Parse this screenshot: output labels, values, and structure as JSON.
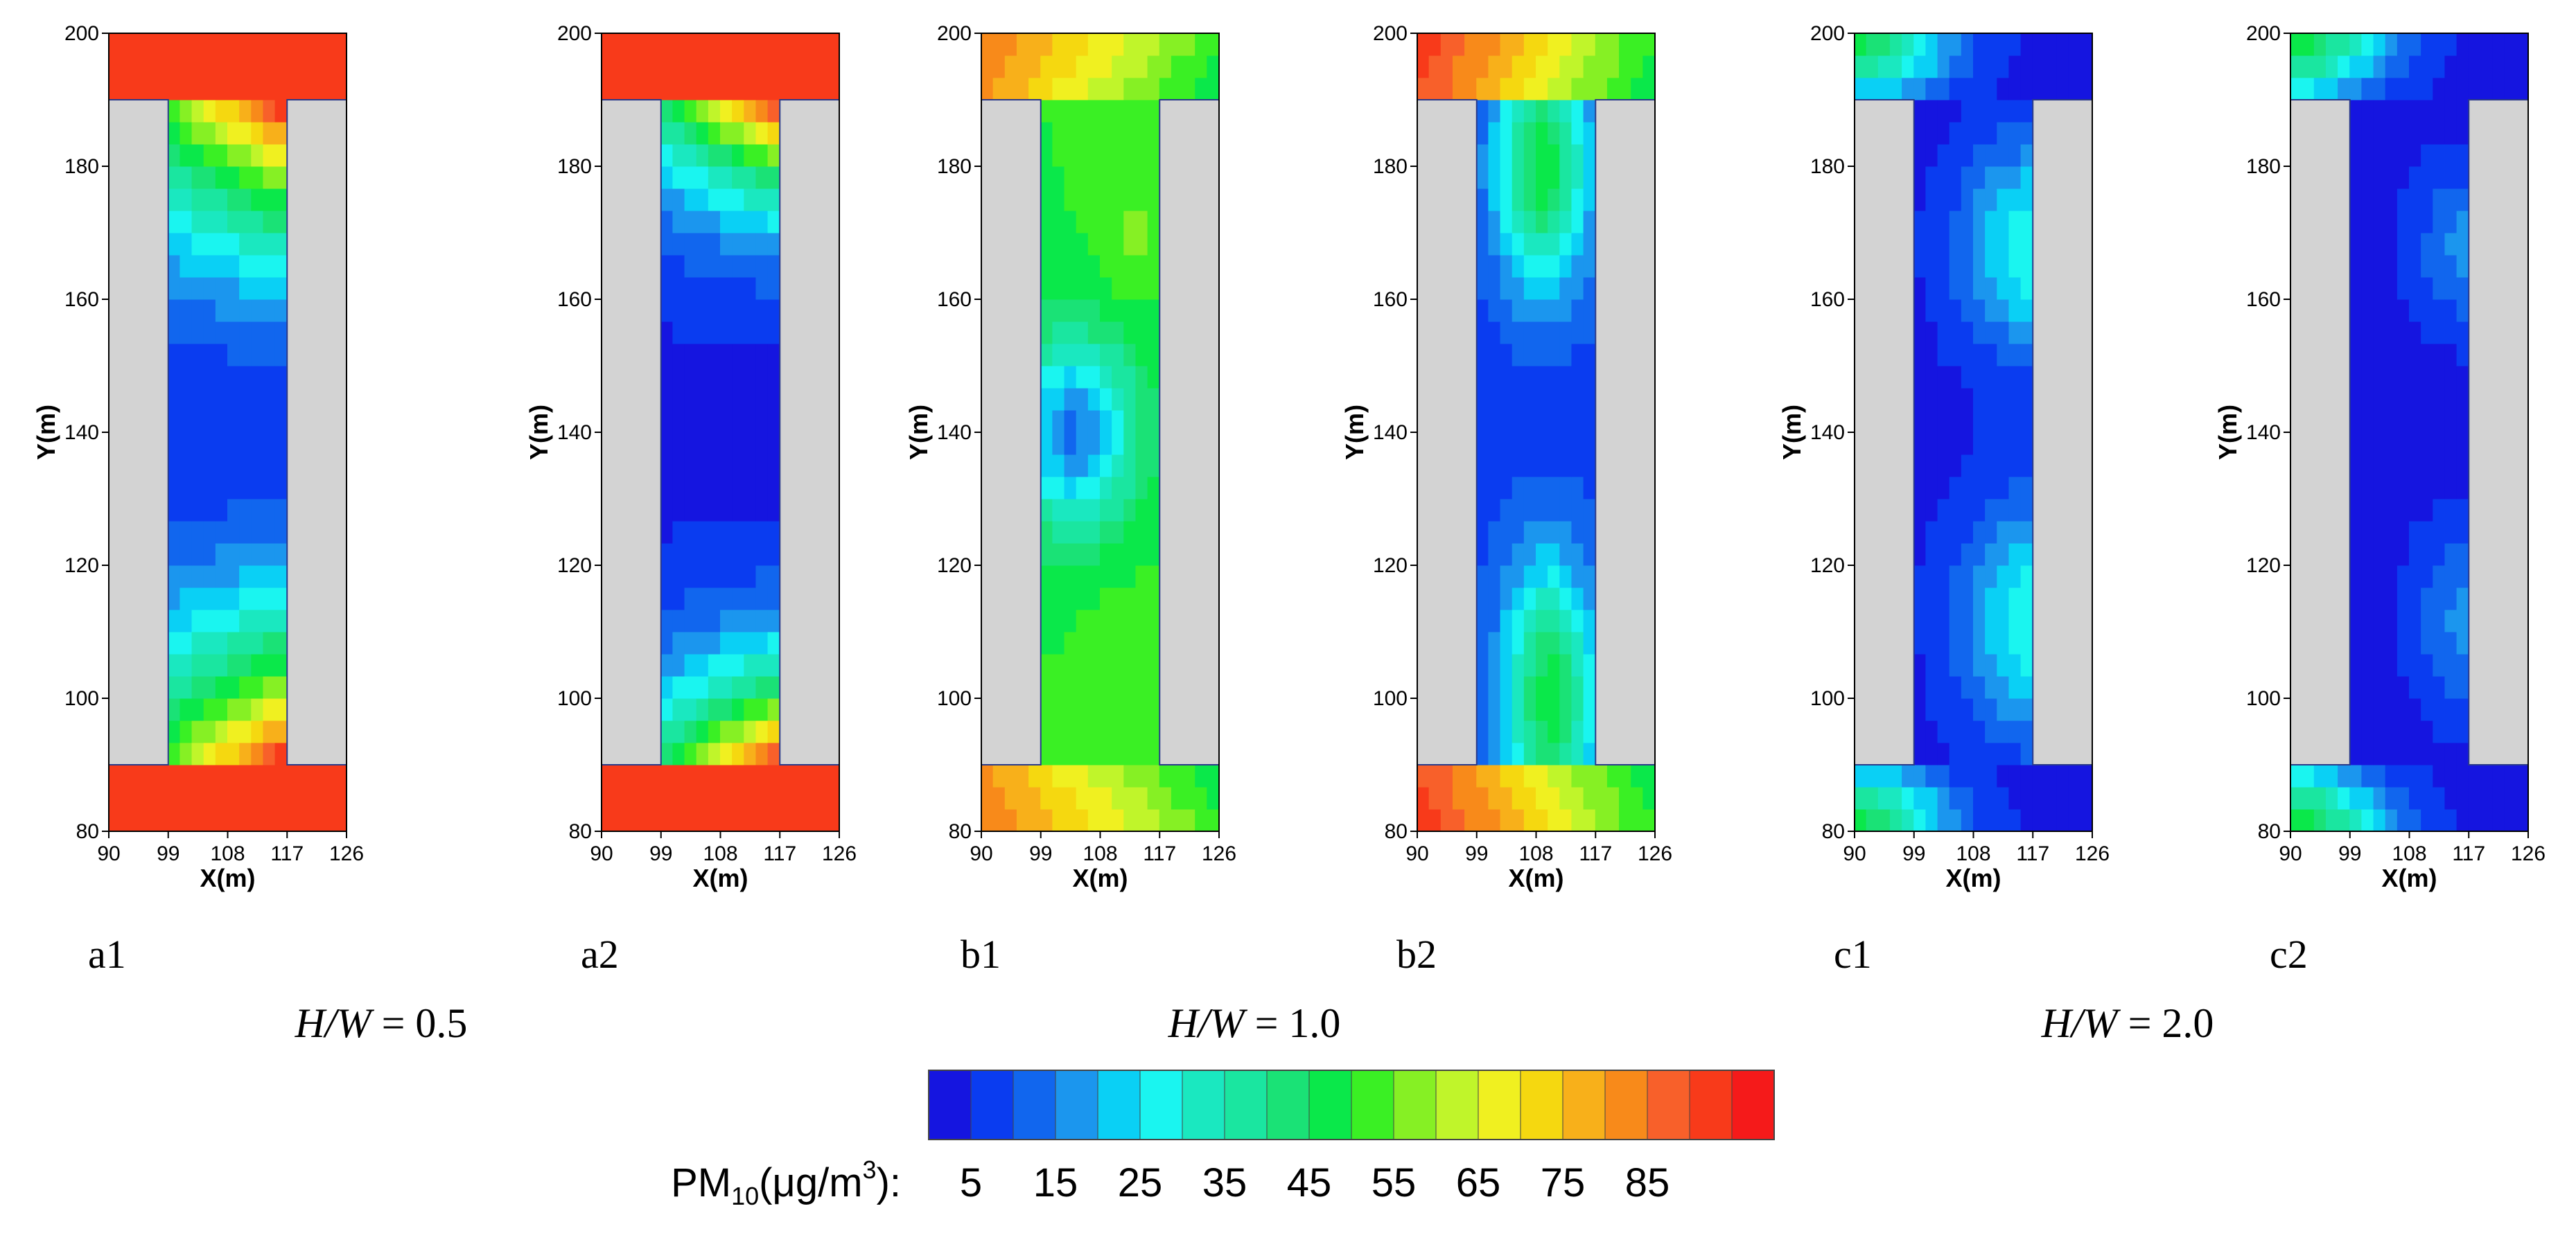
{
  "chart_data": {
    "type": "contour",
    "quantity": "PM10 concentration",
    "x_axis": {
      "label": "X(m)",
      "range": [
        90,
        126
      ],
      "ticks": [
        90,
        99,
        108,
        117,
        126
      ]
    },
    "y_axis": {
      "label": "Y(m)",
      "range": [
        80,
        200
      ],
      "ticks": [
        80,
        100,
        120,
        140,
        160,
        180,
        200
      ]
    },
    "buildings": [
      {
        "side": "left",
        "x_range": [
          90,
          99
        ],
        "y_range": [
          90,
          190
        ]
      },
      {
        "side": "right",
        "x_range": [
          117,
          126
        ],
        "y_range": [
          90,
          190
        ]
      }
    ],
    "panels": [
      {
        "id": "a1",
        "field": "a1"
      },
      {
        "id": "a2",
        "field": "a2"
      },
      {
        "id": "b1",
        "field": "b1"
      },
      {
        "id": "b2",
        "field": "b2"
      },
      {
        "id": "c1",
        "field": "c1"
      },
      {
        "id": "c2",
        "field": "c2"
      }
    ],
    "groups": [
      {
        "italic": "H/W",
        "value": " = 0.5",
        "panels": [
          "a1",
          "a2"
        ]
      },
      {
        "italic": "H/W",
        "value": " = 1.0",
        "panels": [
          "b1",
          "b2"
        ]
      },
      {
        "italic": "H/W",
        "value": " = 2.0",
        "panels": [
          "c1",
          "c2"
        ]
      }
    ],
    "colorbar": {
      "label_prefix": "PM",
      "label_sub": "10",
      "label_units": "(μg/m",
      "label_sup": "3",
      "label_suffix": "):",
      "levels": [
        0,
        5,
        10,
        15,
        20,
        25,
        30,
        35,
        40,
        45,
        50,
        55,
        60,
        65,
        70,
        75,
        80,
        85,
        90,
        95
      ],
      "tick_labels": [
        "5",
        "15",
        "25",
        "35",
        "45",
        "55",
        "65",
        "75",
        "85"
      ],
      "tick_values": [
        5,
        15,
        25,
        35,
        45,
        55,
        65,
        75,
        85
      ],
      "colors": [
        "#1515e0",
        "#0a3cf0",
        "#1166ee",
        "#1b96ee",
        "#0ad0f5",
        "#1af5f0",
        "#1ae8c0",
        "#1ae6a0",
        "#1ae276",
        "#0ae84a",
        "#3af024",
        "#86f024",
        "#c0f52a",
        "#f0f020",
        "#f5d810",
        "#f8b01a",
        "#f88a1a",
        "#f8602a",
        "#f83a1a",
        "#f51a1a"
      ]
    }
  }
}
